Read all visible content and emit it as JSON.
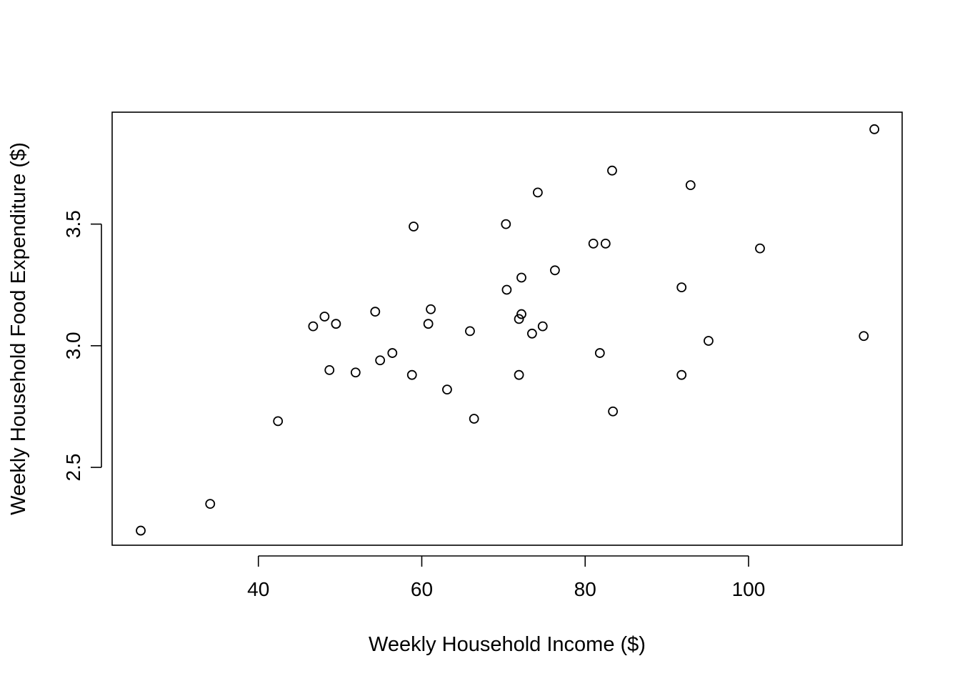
{
  "chart_data": {
    "type": "scatter",
    "title": "",
    "xlabel": "Weekly Household Income ($)",
    "ylabel": "Weekly Household Food Expenditure ($)",
    "xlim": [
      22.1,
      118.8
    ],
    "ylim": [
      2.18,
      3.96
    ],
    "x_ticks": [
      40,
      60,
      80,
      100
    ],
    "x_tick_labels": [
      "40",
      "60",
      "80",
      "100"
    ],
    "y_ticks": [
      2.5,
      3.0,
      3.5
    ],
    "y_tick_labels": [
      "2.5",
      "3.0",
      "3.5"
    ],
    "grid": false,
    "legend": "none",
    "marker": "open-circle",
    "points": [
      {
        "x": 25.6,
        "y": 2.24
      },
      {
        "x": 34.1,
        "y": 2.35
      },
      {
        "x": 42.4,
        "y": 2.69
      },
      {
        "x": 46.7,
        "y": 3.08
      },
      {
        "x": 48.1,
        "y": 3.12
      },
      {
        "x": 48.7,
        "y": 2.9
      },
      {
        "x": 49.5,
        "y": 3.09
      },
      {
        "x": 51.9,
        "y": 2.89
      },
      {
        "x": 54.3,
        "y": 3.14
      },
      {
        "x": 54.9,
        "y": 2.94
      },
      {
        "x": 56.4,
        "y": 2.97
      },
      {
        "x": 58.8,
        "y": 2.88
      },
      {
        "x": 59.0,
        "y": 3.49
      },
      {
        "x": 60.8,
        "y": 3.09
      },
      {
        "x": 61.1,
        "y": 3.15
      },
      {
        "x": 63.1,
        "y": 2.82
      },
      {
        "x": 65.9,
        "y": 3.06
      },
      {
        "x": 66.4,
        "y": 2.7
      },
      {
        "x": 70.3,
        "y": 3.5
      },
      {
        "x": 70.4,
        "y": 3.23
      },
      {
        "x": 71.9,
        "y": 2.88
      },
      {
        "x": 71.9,
        "y": 3.11
      },
      {
        "x": 72.2,
        "y": 3.13
      },
      {
        "x": 72.2,
        "y": 3.28
      },
      {
        "x": 73.5,
        "y": 3.05
      },
      {
        "x": 74.2,
        "y": 3.63
      },
      {
        "x": 74.8,
        "y": 3.08
      },
      {
        "x": 76.3,
        "y": 3.31
      },
      {
        "x": 81.0,
        "y": 3.42
      },
      {
        "x": 81.8,
        "y": 2.97
      },
      {
        "x": 82.5,
        "y": 3.42
      },
      {
        "x": 83.3,
        "y": 3.72
      },
      {
        "x": 83.4,
        "y": 2.73
      },
      {
        "x": 91.8,
        "y": 3.24
      },
      {
        "x": 91.8,
        "y": 2.88
      },
      {
        "x": 92.9,
        "y": 3.66
      },
      {
        "x": 95.1,
        "y": 3.02
      },
      {
        "x": 101.4,
        "y": 3.4
      },
      {
        "x": 114.1,
        "y": 3.04
      },
      {
        "x": 115.4,
        "y": 3.89
      }
    ]
  }
}
